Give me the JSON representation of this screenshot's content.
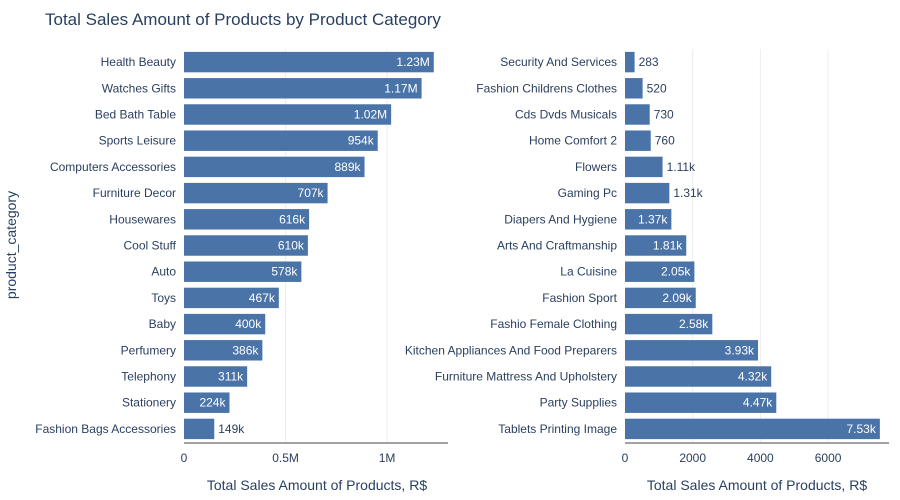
{
  "colors": {
    "bar": "#4a73a8",
    "grid": "#ebedf2",
    "axis_line": "#444444",
    "text": "#2a3f5f",
    "label_inside": "#ffffff",
    "background": "#ffffff"
  },
  "chart_data": [
    {
      "type": "bar",
      "orientation": "horizontal",
      "title": "Total Sales Amount of Products by Product Category",
      "ylabel": "product_category",
      "xlabel": "Total Sales Amount of Products, R$",
      "xlim": [
        0,
        1300000
      ],
      "xticks": [
        0,
        500000,
        1000000
      ],
      "xtick_labels": [
        "0",
        "0.5M",
        "1M"
      ],
      "categories": [
        "Health Beauty",
        "Watches Gifts",
        "Bed Bath Table",
        "Sports Leisure",
        "Computers Accessories",
        "Furniture Decor",
        "Housewares",
        "Cool Stuff",
        "Auto",
        "Toys",
        "Baby",
        "Perfumery",
        "Telephony",
        "Stationery",
        "Fashion Bags Accessories"
      ],
      "values": [
        1230000,
        1170000,
        1020000,
        954000,
        889000,
        707000,
        616000,
        610000,
        578000,
        467000,
        400000,
        386000,
        311000,
        224000,
        149000
      ],
      "value_labels": [
        "1.23M",
        "1.17M",
        "1.02M",
        "954k",
        "889k",
        "707k",
        "616k",
        "610k",
        "578k",
        "467k",
        "400k",
        "386k",
        "311k",
        "224k",
        "149k"
      ]
    },
    {
      "type": "bar",
      "orientation": "horizontal",
      "xlabel": "Total Sales Amount of Products, R$",
      "xlim": [
        0,
        7800
      ],
      "xticks": [
        0,
        2000,
        4000,
        6000
      ],
      "xtick_labels": [
        "0",
        "2000",
        "4000",
        "6000"
      ],
      "categories": [
        "Security And Services",
        "Fashion Childrens Clothes",
        "Cds Dvds Musicals",
        "Home Comfort 2",
        "Flowers",
        "Gaming Pc",
        "Diapers And Hygiene",
        "Arts And Craftmanship",
        "La Cuisine",
        "Fashion Sport",
        "Fashio Female Clothing",
        "Kitchen Appliances And Food Preparers",
        "Furniture Mattress And Upholstery",
        "Party Supplies",
        "Tablets Printing Image"
      ],
      "values": [
        283,
        520,
        730,
        760,
        1110,
        1310,
        1370,
        1810,
        2050,
        2090,
        2580,
        3930,
        4320,
        4470,
        7530
      ],
      "value_labels": [
        "283",
        "520",
        "730",
        "760",
        "1.11k",
        "1.31k",
        "1.37k",
        "1.81k",
        "2.05k",
        "2.09k",
        "2.58k",
        "3.93k",
        "4.32k",
        "4.47k",
        "7.53k"
      ]
    }
  ]
}
